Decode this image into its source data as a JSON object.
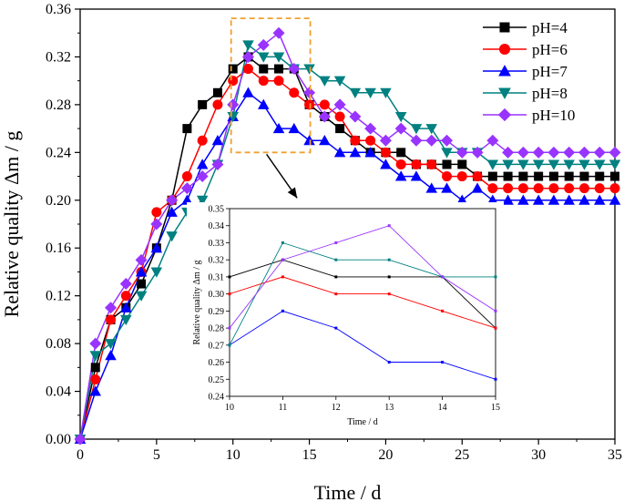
{
  "chart_data": [
    {
      "id": "main",
      "type": "line",
      "title": "",
      "xlabel": "Time / d",
      "ylabel": "Relative quality Δm / g",
      "xlim": [
        0,
        35
      ],
      "ylim": [
        0,
        0.36
      ],
      "xticks": [
        0,
        5,
        10,
        15,
        20,
        25,
        30,
        35
      ],
      "yticks": [
        0.0,
        0.04,
        0.08,
        0.12,
        0.16,
        0.2,
        0.24,
        0.28,
        0.32,
        0.36
      ],
      "ytick_labels": [
        "0.00",
        "0.04",
        "0.08",
        "0.12",
        "0.16",
        "0.20",
        "0.24",
        "0.28",
        "0.32",
        "0.36"
      ],
      "legend": "top-right",
      "x": [
        0,
        1,
        2,
        3,
        4,
        5,
        6,
        7,
        8,
        9,
        10,
        11,
        12,
        13,
        14,
        15,
        16,
        17,
        18,
        19,
        20,
        21,
        22,
        23,
        24,
        25,
        26,
        27,
        28,
        29,
        30,
        31,
        32,
        33,
        34,
        35
      ],
      "series": [
        {
          "name": "pH=4",
          "color": "#000000",
          "marker": "square",
          "values": [
            0,
            0.06,
            0.1,
            0.11,
            0.13,
            0.16,
            0.2,
            0.26,
            0.28,
            0.29,
            0.31,
            0.32,
            0.31,
            0.31,
            0.31,
            0.28,
            0.27,
            0.26,
            0.25,
            0.24,
            0.24,
            0.24,
            0.23,
            0.23,
            0.23,
            0.23,
            0.22,
            0.22,
            0.22,
            0.22,
            0.22,
            0.22,
            0.22,
            0.22,
            0.22,
            0.22
          ]
        },
        {
          "name": "pH=6",
          "color": "#ff0000",
          "marker": "circle",
          "values": [
            0,
            0.05,
            0.1,
            0.12,
            0.14,
            0.19,
            0.2,
            0.22,
            0.25,
            0.28,
            0.3,
            0.31,
            0.3,
            0.3,
            0.29,
            0.28,
            0.28,
            0.27,
            0.25,
            0.25,
            0.24,
            0.23,
            0.23,
            0.23,
            0.22,
            0.22,
            0.22,
            0.21,
            0.21,
            0.21,
            0.21,
            0.21,
            0.21,
            0.21,
            0.21,
            0.21
          ]
        },
        {
          "name": "pH=7",
          "color": "#0000ff",
          "marker": "triangle-up",
          "values": [
            0,
            0.04,
            0.07,
            0.11,
            0.14,
            0.16,
            0.19,
            0.2,
            0.23,
            0.25,
            0.27,
            0.29,
            0.28,
            0.26,
            0.26,
            0.25,
            0.25,
            0.24,
            0.24,
            0.24,
            0.23,
            0.22,
            0.22,
            0.21,
            0.21,
            0.2,
            0.21,
            0.2,
            0.2,
            0.2,
            0.2,
            0.2,
            0.2,
            0.2,
            0.2,
            0.2
          ]
        },
        {
          "name": "pH=8",
          "color": "#008080",
          "marker": "triangle-down",
          "values": [
            0,
            0.07,
            0.08,
            0.1,
            0.12,
            0.14,
            0.17,
            0.19,
            0.2,
            0.23,
            0.27,
            0.33,
            0.32,
            0.32,
            0.31,
            0.31,
            0.3,
            0.3,
            0.29,
            0.29,
            0.29,
            0.27,
            0.26,
            0.26,
            0.24,
            0.24,
            0.24,
            0.23,
            0.23,
            0.23,
            0.23,
            0.23,
            0.23,
            0.23,
            0.23,
            0.23
          ]
        },
        {
          "name": "pH=10",
          "color": "#9933ff",
          "marker": "diamond",
          "values": [
            0,
            0.08,
            0.11,
            0.13,
            0.15,
            0.18,
            0.2,
            0.21,
            0.22,
            0.23,
            0.28,
            0.32,
            0.33,
            0.34,
            0.31,
            0.29,
            0.27,
            0.28,
            0.27,
            0.26,
            0.25,
            0.26,
            0.25,
            0.25,
            0.25,
            0.24,
            0.24,
            0.25,
            0.24,
            0.24,
            0.24,
            0.24,
            0.24,
            0.24,
            0.24,
            0.24
          ]
        }
      ]
    },
    {
      "id": "inset",
      "type": "line",
      "title": "",
      "xlabel": "Time / d",
      "ylabel": "Relative quality Δm / g",
      "xlim": [
        10,
        15
      ],
      "ylim": [
        0.24,
        0.35
      ],
      "xticks": [
        10,
        11,
        12,
        13,
        14,
        15
      ],
      "yticks": [
        0.24,
        0.25,
        0.26,
        0.27,
        0.28,
        0.29,
        0.3,
        0.31,
        0.32,
        0.33,
        0.34,
        0.35
      ],
      "ytick_labels": [
        "0.24",
        "0.25",
        "0.26",
        "0.27",
        "0.28",
        "0.29",
        "0.30",
        "0.31",
        "0.32",
        "0.33",
        "0.34",
        "0.35"
      ],
      "x": [
        10,
        11,
        12,
        13,
        14,
        15
      ],
      "series": [
        {
          "name": "pH=4",
          "color": "#000000",
          "values": [
            0.31,
            0.32,
            0.31,
            0.31,
            0.31,
            0.28
          ]
        },
        {
          "name": "pH=6",
          "color": "#ff0000",
          "values": [
            0.3,
            0.31,
            0.3,
            0.3,
            0.29,
            0.28
          ]
        },
        {
          "name": "pH=7",
          "color": "#0000ff",
          "values": [
            0.27,
            0.29,
            0.28,
            0.26,
            0.26,
            0.25
          ]
        },
        {
          "name": "pH=8",
          "color": "#008080",
          "values": [
            0.27,
            0.33,
            0.32,
            0.32,
            0.31,
            0.31
          ]
        },
        {
          "name": "pH=10",
          "color": "#9933ff",
          "values": [
            0.28,
            0.32,
            0.33,
            0.34,
            0.31,
            0.29
          ]
        }
      ]
    }
  ],
  "zoom_region": {
    "x_range": [
      10,
      15
    ],
    "y_range": [
      0.24,
      0.35
    ],
    "color": "#f0a030"
  }
}
